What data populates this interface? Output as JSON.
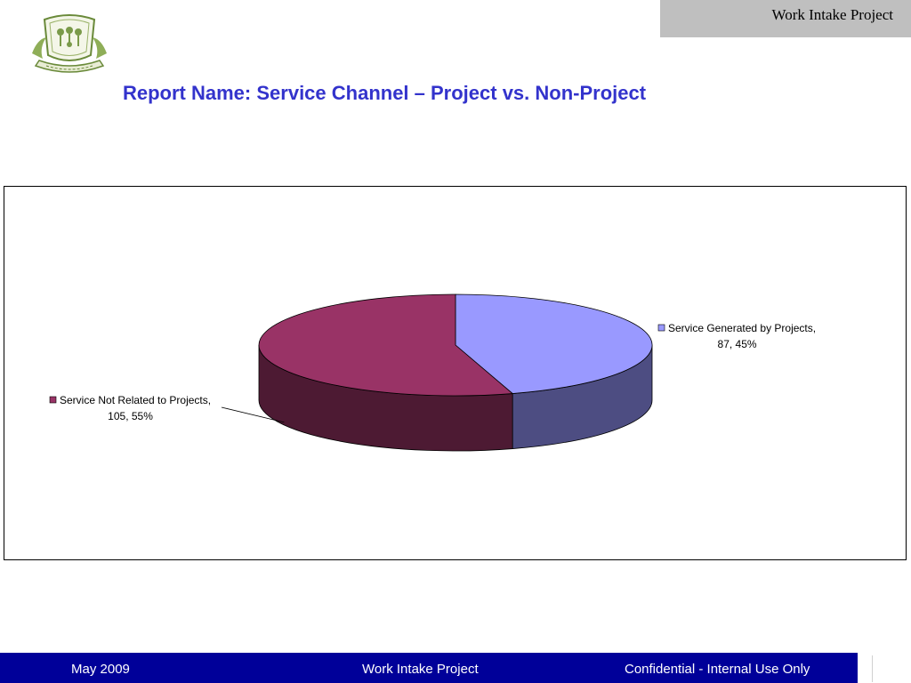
{
  "header": {
    "tab_label": "Work Intake Project"
  },
  "slide": {
    "title": "Report Name:  Service Channel – Project vs. Non-Project"
  },
  "chart_data": {
    "type": "pie",
    "title": "",
    "three_d": true,
    "series": [
      {
        "name": "Service Generated by Projects",
        "value": 87,
        "percent": 45,
        "color": "#9999ff",
        "side_color": "#4d4d82",
        "label_line1": "Service Generated by Projects,",
        "label_line2": "87, 45%"
      },
      {
        "name": "Service Not Related to Projects",
        "value": 105,
        "percent": 55,
        "color": "#993366",
        "side_color": "#4d1a33",
        "label_line1": "Service Not Related to Projects,",
        "label_line2": "105, 55%"
      }
    ]
  },
  "footer": {
    "date": "May 2009",
    "project": "Work Intake Project",
    "confidentiality": "Confidential - Internal Use Only"
  }
}
